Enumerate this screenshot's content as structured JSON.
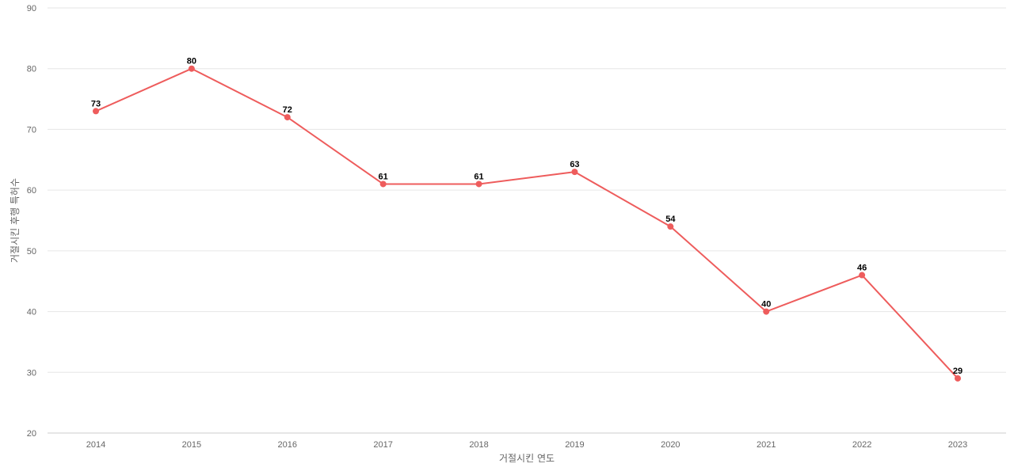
{
  "chart_data": {
    "type": "line",
    "title": "",
    "xlabel": "거절시킨 연도",
    "ylabel": "거절시킨 후행 특허수",
    "categories": [
      "2014",
      "2015",
      "2016",
      "2017",
      "2018",
      "2019",
      "2020",
      "2021",
      "2022",
      "2023"
    ],
    "series": [
      {
        "values": [
          73,
          80,
          72,
          61,
          61,
          63,
          54,
          40,
          46,
          29
        ],
        "color": "#ee5c5c"
      }
    ],
    "ylim": [
      20,
      90
    ],
    "yticks": [
      20,
      30,
      40,
      50,
      60,
      70,
      80,
      90
    ],
    "grid": true,
    "data_labels": true
  }
}
